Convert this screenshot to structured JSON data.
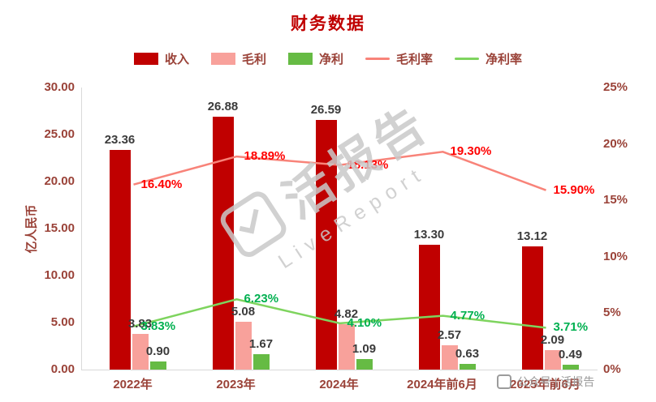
{
  "chart_data": {
    "type": "bar",
    "title": "财务数据",
    "ylabel": "亿人民币",
    "categories": [
      "2022年",
      "2023年",
      "2024年",
      "2024年前6月",
      "2025年前6月"
    ],
    "series": [
      {
        "key": "revenue",
        "name": "收入",
        "type": "bar",
        "color": "#c00000",
        "values": [
          23.36,
          26.88,
          26.59,
          13.3,
          13.12
        ]
      },
      {
        "key": "gross-profit",
        "name": "毛利",
        "type": "bar",
        "color": "#f8a19b",
        "values": [
          3.83,
          5.08,
          4.82,
          2.57,
          2.09
        ]
      },
      {
        "key": "net-profit",
        "name": "净利",
        "type": "bar",
        "color": "#66bb44",
        "values": [
          0.9,
          1.67,
          1.09,
          0.63,
          0.49
        ]
      },
      {
        "key": "gross-margin",
        "name": "毛利率",
        "type": "line",
        "axis": "right",
        "color": "#f88379",
        "label_color": "#ff0000",
        "values": [
          16.4,
          18.89,
          18.13,
          19.3,
          15.9
        ]
      },
      {
        "key": "net-margin",
        "name": "净利率",
        "type": "line",
        "axis": "right",
        "color": "#7ed45e",
        "label_color": "#00b050",
        "values": [
          3.83,
          6.23,
          4.1,
          4.77,
          3.71
        ]
      }
    ],
    "left_axis": {
      "min": 0,
      "max": 30,
      "ticks": [
        "30.00",
        "25.00",
        "20.00",
        "15.00",
        "10.00",
        "5.00",
        "0.00"
      ]
    },
    "right_axis": {
      "min": 0,
      "max": 25,
      "ticks": [
        "25%",
        "20%",
        "15%",
        "10%",
        "5%",
        "0%"
      ]
    },
    "legend_position": "top",
    "grid": false
  },
  "watermark": {
    "main": "活报告",
    "sub": "LiveReport",
    "footer": "公众号 | 活报告"
  }
}
